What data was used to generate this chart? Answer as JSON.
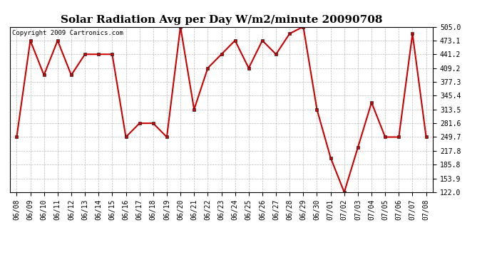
{
  "title": "Solar Radiation Avg per Day W/m2/minute 20090708",
  "copyright": "Copyright 2009 Cartronics.com",
  "dates": [
    "06/08",
    "06/09",
    "06/10",
    "06/11",
    "06/12",
    "06/13",
    "06/14",
    "06/15",
    "06/16",
    "06/17",
    "06/18",
    "06/19",
    "06/20",
    "06/21",
    "06/22",
    "06/23",
    "06/24",
    "06/25",
    "06/26",
    "06/27",
    "06/28",
    "06/29",
    "06/30",
    "07/01",
    "07/02",
    "07/03",
    "07/04",
    "07/05",
    "07/06",
    "07/07",
    "07/08"
  ],
  "values": [
    249.7,
    473.1,
    393.1,
    473.1,
    393.1,
    441.2,
    441.2,
    441.2,
    249.7,
    281.6,
    281.6,
    249.7,
    505.0,
    313.5,
    409.2,
    441.2,
    473.1,
    409.2,
    473.1,
    441.2,
    489.0,
    505.0,
    313.5,
    201.8,
    122.0,
    225.8,
    329.5,
    249.7,
    249.7,
    489.0,
    249.7
  ],
  "ylim": [
    122.0,
    505.0
  ],
  "yticks": [
    505.0,
    473.1,
    441.2,
    409.2,
    377.3,
    345.4,
    313.5,
    281.6,
    249.7,
    217.8,
    185.8,
    153.9,
    122.0
  ],
  "line_color": "#cc0000",
  "marker": "s",
  "marker_size": 3,
  "bg_color": "#ffffff",
  "grid_color": "#aaaaaa",
  "title_fontsize": 11,
  "tick_fontsize": 7,
  "copyright_fontsize": 6.5
}
